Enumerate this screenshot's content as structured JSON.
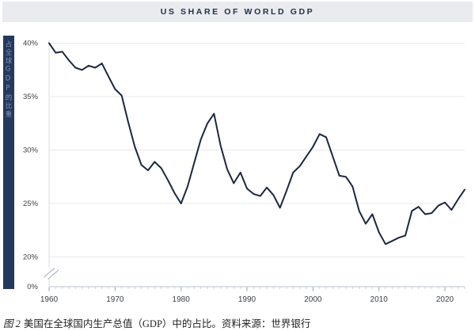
{
  "header": {
    "title": "US SHARE OF WORLD GDP"
  },
  "sidebar": {
    "vertical_label": "占全球GDP的比重"
  },
  "caption": {
    "figure_label": "图 2",
    "text": "美国在全球国内生产总值（GDP）中的占比。资料来源：世界银行"
  },
  "colors": {
    "header_bg": "#e9ebef",
    "header_text": "#1d3049",
    "sidebar_bg": "#25395d",
    "sidebar_text": "#8093b6",
    "line": "#1b2740",
    "gridline": "#e5e8ec",
    "y_axis_line": "#d9dde2",
    "x_axis_line": "#c7cdd4",
    "minor_tick": "#ccd2d8",
    "major_tick": "#9aa2ac",
    "break_mark": "#b6bdc6",
    "tick_label": "#3c4248"
  },
  "chart_data": {
    "type": "line",
    "title": "US SHARE OF WORLD GDP",
    "series_name": "US share of world GDP",
    "unit": "%",
    "x": [
      1960,
      1961,
      1962,
      1963,
      1964,
      1965,
      1966,
      1967,
      1968,
      1969,
      1970,
      1971,
      1972,
      1973,
      1974,
      1975,
      1976,
      1977,
      1978,
      1979,
      1980,
      1981,
      1982,
      1983,
      1984,
      1985,
      1986,
      1987,
      1988,
      1989,
      1990,
      1991,
      1992,
      1993,
      1994,
      1995,
      1996,
      1997,
      1998,
      1999,
      2000,
      2001,
      2002,
      2003,
      2004,
      2005,
      2006,
      2007,
      2008,
      2009,
      2010,
      2011,
      2012,
      2013,
      2014,
      2015,
      2016,
      2017,
      2018,
      2019,
      2020,
      2021,
      2022,
      2023
    ],
    "values": [
      40.0,
      39.1,
      39.2,
      38.4,
      37.7,
      37.5,
      37.9,
      37.7,
      38.1,
      36.9,
      35.7,
      35.1,
      32.6,
      30.3,
      28.6,
      28.1,
      28.9,
      28.3,
      27.2,
      26.0,
      25.0,
      26.6,
      28.8,
      31.0,
      32.5,
      33.4,
      30.4,
      28.2,
      26.9,
      27.9,
      26.4,
      25.9,
      25.7,
      26.5,
      25.8,
      24.6,
      26.2,
      27.9,
      28.5,
      29.4,
      30.3,
      31.5,
      31.2,
      29.4,
      27.6,
      27.5,
      26.6,
      24.3,
      23.1,
      24.0,
      22.3,
      21.2,
      21.5,
      21.8,
      22.0,
      24.3,
      24.7,
      24.0,
      24.1,
      24.8,
      25.1,
      24.4,
      25.4,
      26.3
    ],
    "x_ticks": [
      1960,
      1970,
      1980,
      1990,
      2000,
      2010,
      2020
    ],
    "y_ticks": [
      {
        "label": "40%",
        "value": 40
      },
      {
        "label": "35%",
        "value": 35
      },
      {
        "label": "30%",
        "value": 30
      },
      {
        "label": "25%",
        "value": 25
      },
      {
        "label": "20%",
        "value": 20
      },
      {
        "label": "0%",
        "value": 0
      }
    ],
    "y_display_range": [
      20,
      40
    ],
    "axis_break_between": [
      0,
      20
    ],
    "grid": "horizontal-only",
    "legend": "none"
  }
}
